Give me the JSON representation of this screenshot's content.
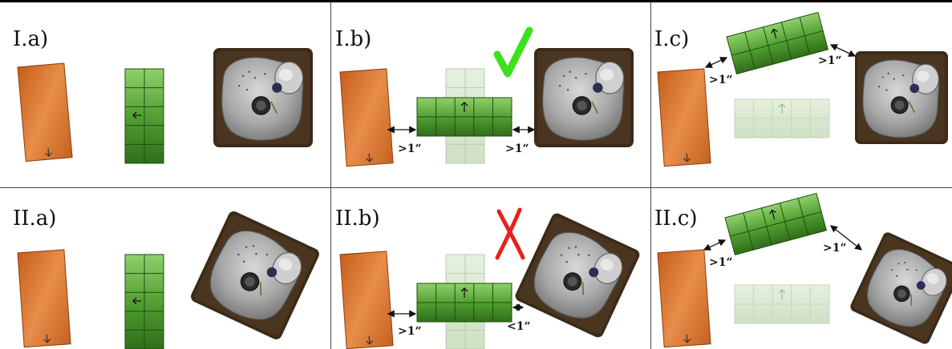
{
  "panels": {
    "Ia": {
      "label": "I.a)"
    },
    "Ib": {
      "label": "I.b)"
    },
    "Ic": {
      "label": "I.c)"
    },
    "IIa": {
      "label": "II.a)"
    },
    "IIb": {
      "label": "II.b)"
    },
    "IIc": {
      "label": "II.c)"
    }
  },
  "distances": {
    "ib_left": ">1“",
    "ib_right": ">1“",
    "ic_left": ">1“",
    "ic_right": ">1“",
    "iib_left": ">1“",
    "iib_right": "<1“",
    "iic_left": ">1“",
    "iic_right": ">1“"
  },
  "marks": {
    "valid": "check-mark-icon",
    "invalid": "cross-mark-icon"
  },
  "colors": {
    "orange": "#d4742e",
    "green": "#4c9a2e",
    "check": "#3ee01c",
    "cross": "#e8201c"
  }
}
